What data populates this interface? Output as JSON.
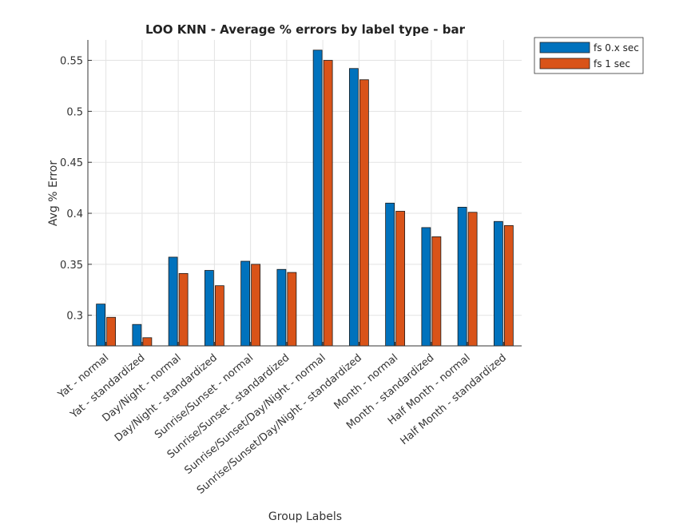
{
  "chart_data": {
    "type": "bar",
    "title": "LOO KNN - Average % errors by label type - bar",
    "xlabel": "Group Labels",
    "ylabel": "Avg % Error",
    "ylim": [
      0.27,
      0.57
    ],
    "yticks": [
      "0.3",
      "0.35",
      "0.4",
      "0.45",
      "0.5",
      "0.55"
    ],
    "grid": true,
    "legend_position": "top-right",
    "categories": [
      "Yat - normal",
      "Yat - standardized",
      "Day/Night - normal",
      "Day/Night - standardized",
      "Sunrise/Sunset - normal",
      "Sunrise/Sunset - standardized",
      "Sunrise/Sunset/Day/Night - normal",
      "Sunrise/Sunset/Day/Night - standardized",
      "Month - normal",
      "Month - standardized",
      "Half Month - normal",
      "Half Month - standardized"
    ],
    "series": [
      {
        "name": "fs 0.x sec",
        "color": "#0072BD",
        "values": [
          0.311,
          0.291,
          0.357,
          0.344,
          0.353,
          0.345,
          0.56,
          0.542,
          0.41,
          0.386,
          0.406,
          0.392
        ]
      },
      {
        "name": "fs 1 sec",
        "color": "#D95319",
        "values": [
          0.298,
          0.278,
          0.341,
          0.329,
          0.35,
          0.342,
          0.55,
          0.531,
          0.402,
          0.377,
          0.401,
          0.388
        ]
      }
    ]
  }
}
